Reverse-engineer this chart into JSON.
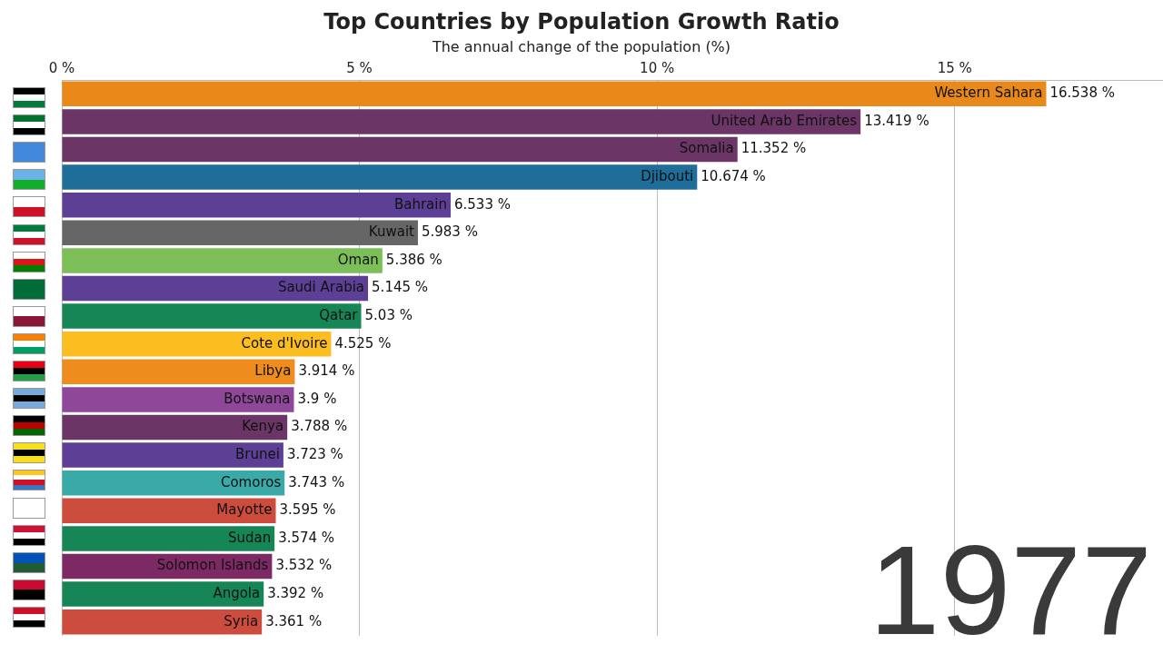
{
  "chart_data": {
    "type": "bar",
    "orientation": "horizontal",
    "title": "Top Countries by Population Growth Ratio",
    "subtitle": "The annual change of the population (%)",
    "categories": [
      "Western Sahara",
      "United Arab Emirates",
      "Somalia",
      "Djibouti",
      "Bahrain",
      "Kuwait",
      "Oman",
      "Saudi Arabia",
      "Qatar",
      "Cote d'Ivoire",
      "Libya",
      "Botswana",
      "Kenya",
      "Brunei",
      "Comoros",
      "Mayotte",
      "Sudan",
      "Solomon Islands",
      "Angola",
      "Syria"
    ],
    "values": [
      16.538,
      13.419,
      11.352,
      10.674,
      6.533,
      5.983,
      5.386,
      5.145,
      5.03,
      4.525,
      3.914,
      3.9,
      3.788,
      3.723,
      3.743,
      3.595,
      3.574,
      3.532,
      3.392,
      3.361
    ],
    "value_labels": [
      "16.538 %",
      "13.419 %",
      "11.352 %",
      "10.674 %",
      "6.533 %",
      "5.983 %",
      "5.386 %",
      "5.145 %",
      "5.03 %",
      "4.525 %",
      "3.914 %",
      "3.9 %",
      "3.788 %",
      "3.723 %",
      "3.743 %",
      "3.595 %",
      "3.574 %",
      "3.532 %",
      "3.392 %",
      "3.361 %"
    ],
    "colors": [
      "#e8891a",
      "#6b3566",
      "#6b3566",
      "#1f6d99",
      "#5d3f96",
      "#666666",
      "#7cbf59",
      "#5d3f96",
      "#168657",
      "#fbbd1f",
      "#ee8c1d",
      "#8e4799",
      "#6b3566",
      "#5d3f96",
      "#3aaaa8",
      "#cc4c3d",
      "#168657",
      "#7d2a64",
      "#168657",
      "#cc4c3d"
    ],
    "xlim": [
      0,
      18.5
    ],
    "xticks": [
      {
        "value": 0,
        "label": "0 %"
      },
      {
        "value": 5,
        "label": "5 %"
      },
      {
        "value": 10,
        "label": "10 %"
      },
      {
        "value": 15,
        "label": "15 %"
      }
    ],
    "grid": "x",
    "legend": false,
    "tick_labels": "x",
    "annotations": [
      "1977"
    ]
  }
}
